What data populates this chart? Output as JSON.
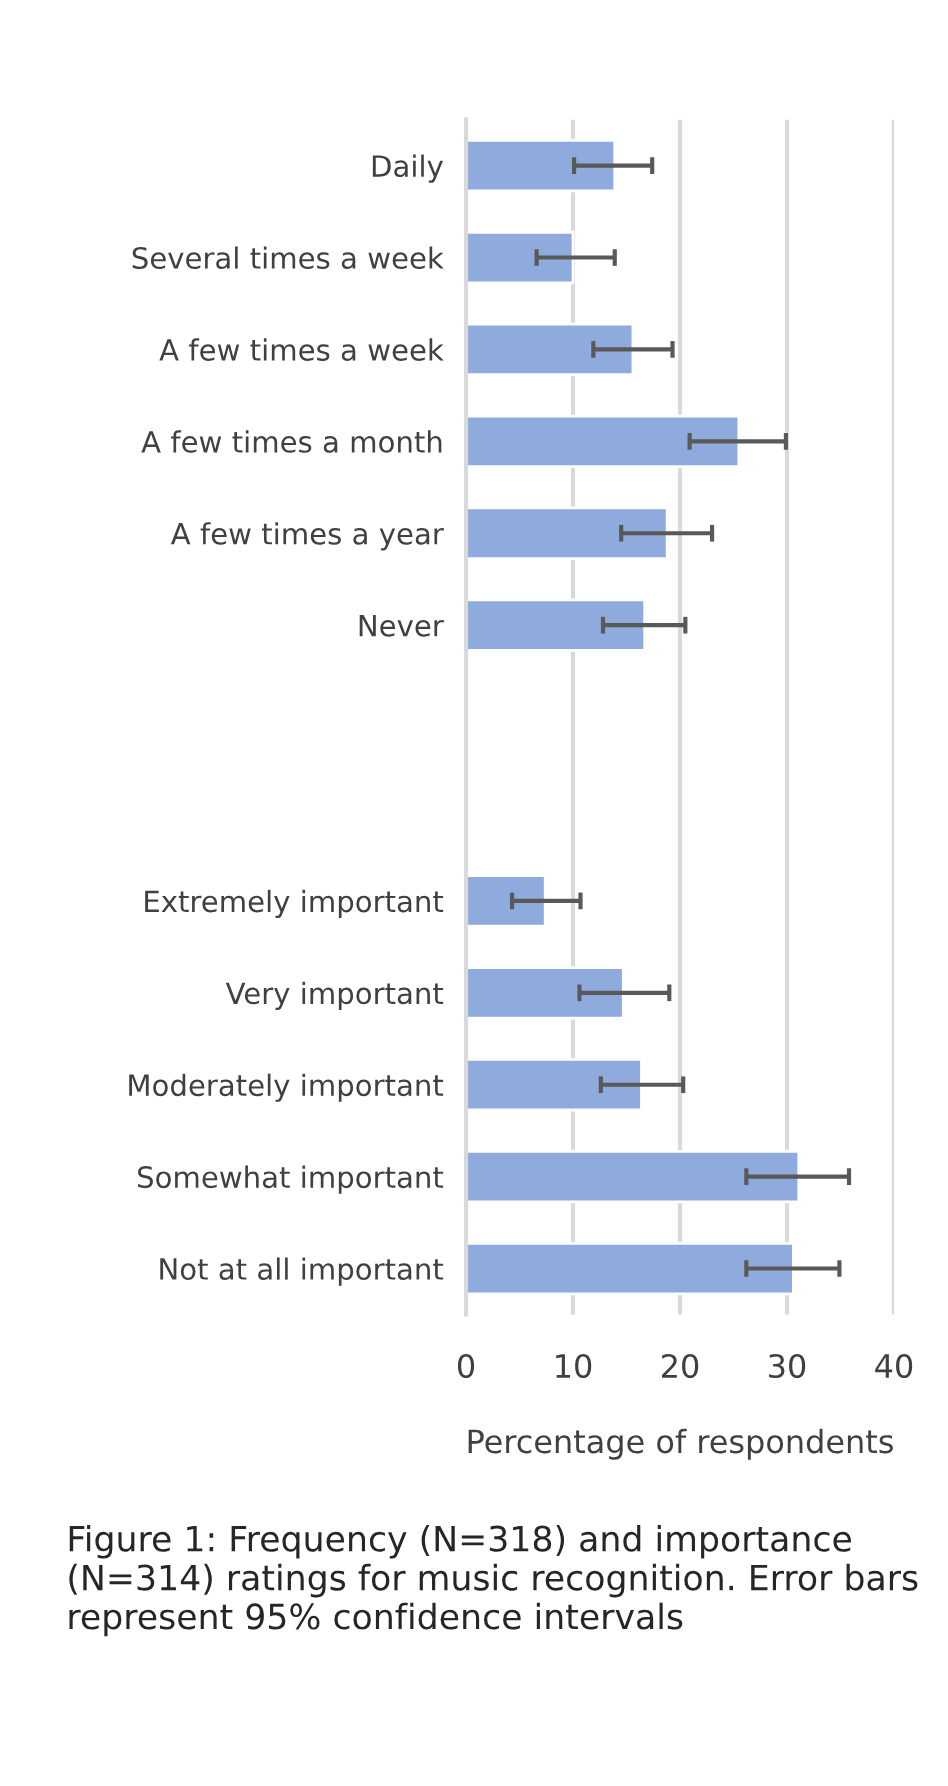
{
  "chart_data": {
    "type": "bar",
    "orientation": "horizontal",
    "categories": [
      "Daily",
      "Several times a week",
      "A few times a week",
      "A few times a month",
      "A few times a year",
      "Never",
      null,
      null,
      "Extremely important",
      "Very important",
      "Moderately important",
      "Somewhat important",
      "Not at all important"
    ],
    "values": [
      13.9,
      10.0,
      15.6,
      25.5,
      18.8,
      16.7,
      null,
      null,
      7.4,
      14.7,
      16.4,
      31.1,
      30.6
    ],
    "errors": [
      [
        10.1,
        17.4
      ],
      [
        6.6,
        13.9
      ],
      [
        11.9,
        19.3
      ],
      [
        20.9,
        29.9
      ],
      [
        14.5,
        23.0
      ],
      [
        12.8,
        20.5
      ],
      null,
      null,
      [
        4.3,
        10.7
      ],
      [
        10.6,
        19.0
      ],
      [
        12.6,
        20.3
      ],
      [
        26.2,
        35.8
      ],
      [
        26.2,
        34.9
      ]
    ],
    "color": "#8faadc",
    "xlim": [
      0,
      40
    ],
    "xticks": [
      0,
      10,
      20,
      30,
      40
    ],
    "xlabel": "Percentage of respondents",
    "grid": "x",
    "annotations": [
      "Figure 1: Frequency (N=318) and importance (N=314) ratings for music recognition. Error bars represent 95% confidence intervals"
    ]
  }
}
